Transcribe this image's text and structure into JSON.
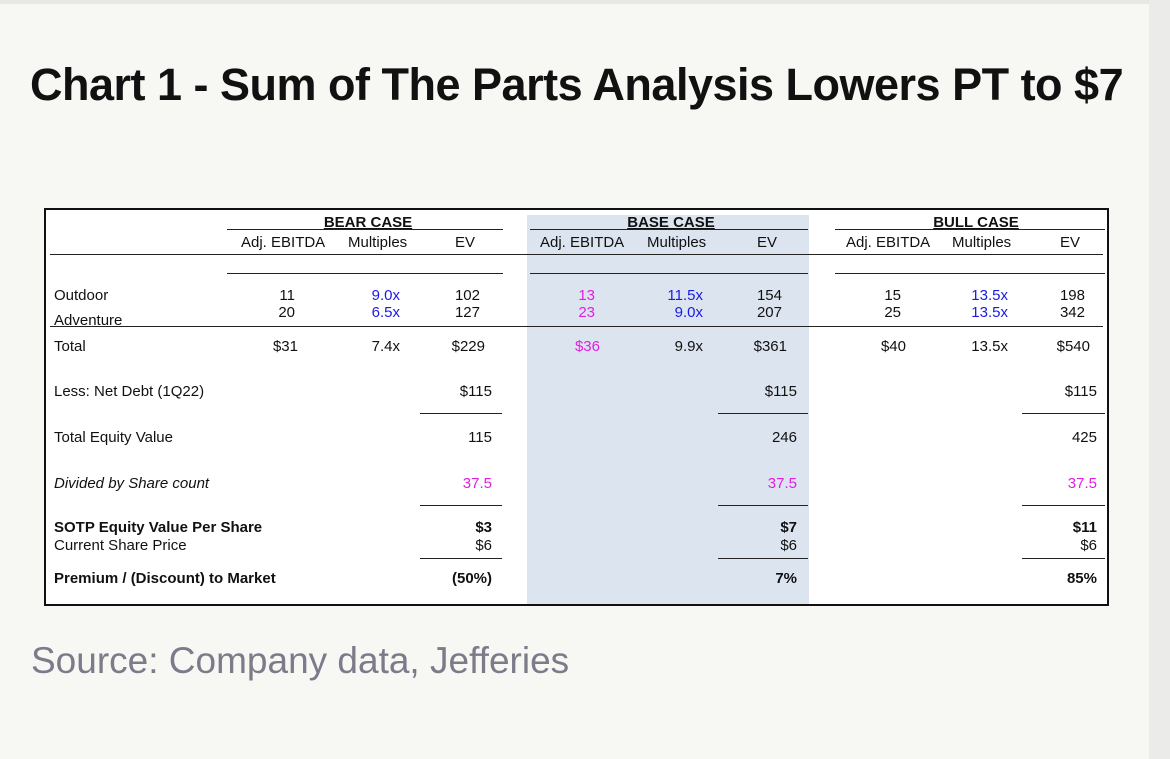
{
  "title": "Chart 1 - Sum of The Parts Analysis Lowers PT to $7",
  "source": "Source: Company data, Jefferies",
  "columns": {
    "ebitda": "Adj. EBITDA",
    "multiples": "Multiples",
    "ev": "EV"
  },
  "bear": {
    "header": "BEAR CASE",
    "outdoor": {
      "ebitda": "11",
      "multiple": "9.0x",
      "ev": "102"
    },
    "adventure": {
      "ebitda": "20",
      "multiple": "6.5x",
      "ev": "127"
    },
    "total": {
      "ebitda": "$31",
      "multiple": "7.4x",
      "ev": "$229"
    },
    "net_debt": "$115",
    "equity": "115",
    "shares": "37.5",
    "sotp": "$3",
    "price": "$6",
    "premium": "(50%)"
  },
  "base": {
    "header": "BASE CASE",
    "outdoor": {
      "ebitda": "13",
      "multiple": "11.5x",
      "ev": "154"
    },
    "adventure": {
      "ebitda": "23",
      "multiple": "9.0x",
      "ev": "207"
    },
    "total": {
      "ebitda": "$36",
      "multiple": "9.9x",
      "ev": "$361"
    },
    "net_debt": "$115",
    "equity": "246",
    "shares": "37.5",
    "sotp": "$7",
    "price": "$6",
    "premium": "7%"
  },
  "bull": {
    "header": "BULL CASE",
    "outdoor": {
      "ebitda": "15",
      "multiple": "13.5x",
      "ev": "198"
    },
    "adventure": {
      "ebitda": "25",
      "multiple": "13.5x",
      "ev": "342"
    },
    "total": {
      "ebitda": "$40",
      "multiple": "13.5x",
      "ev": "$540"
    },
    "net_debt": "$115",
    "equity": "425",
    "shares": "37.5",
    "sotp": "$11",
    "price": "$6",
    "premium": "85%"
  },
  "rows": {
    "outdoor": "Outdoor",
    "adventure": "Adventure",
    "total": "Total",
    "net_debt": "Less: Net Debt (1Q22)",
    "equity": "Total Equity Value",
    "shares": "Divided by Share count",
    "sotp": "SOTP Equity Value Per Share",
    "price": "Current Share Price",
    "premium": "Premium / (Discount) to Market"
  }
}
